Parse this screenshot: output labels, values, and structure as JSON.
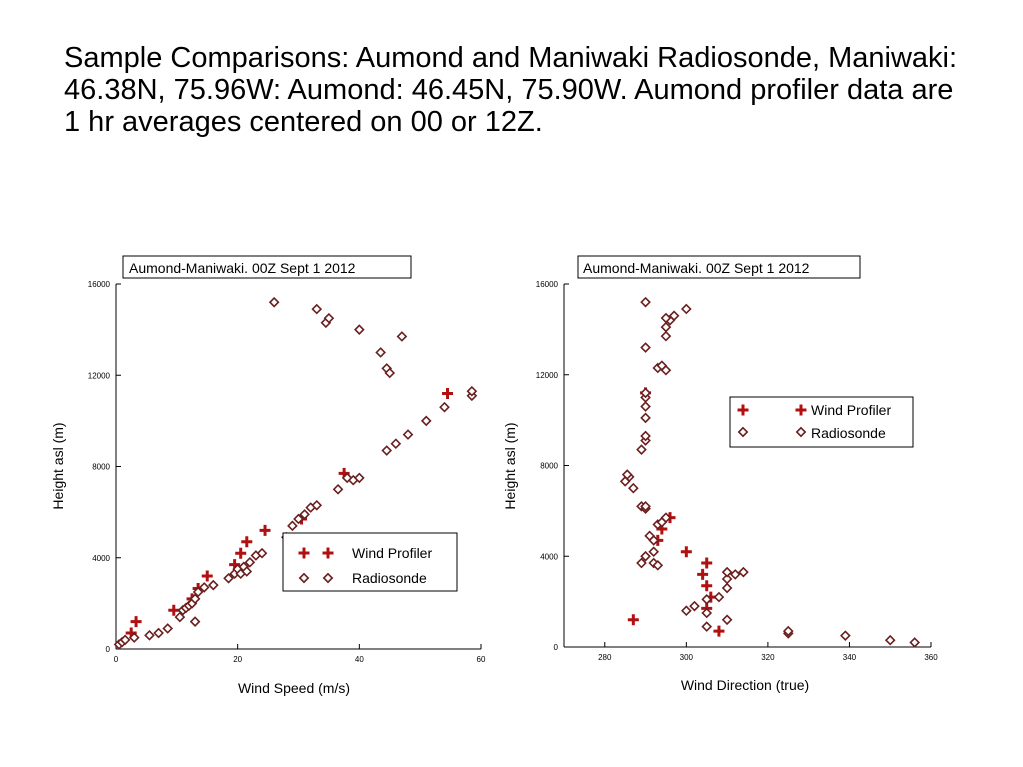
{
  "slide": {
    "title": "Sample Comparisons: Aumond  and Maniwaki Radiosonde,  Maniwaki: 46.38N, 75.96W: Aumond: 46.45N, 75.90W. Aumond profiler data are 1 hr averages centered on 00 or 12Z."
  },
  "colors": {
    "profiler": "#b01010",
    "radiosonde": "#6a1f1f",
    "axis": "#000000"
  },
  "chart_data": [
    {
      "type": "scatter",
      "title": "Aumond-Maniwaki.  00Z Sept 1 2012",
      "xlabel": "Wind Speed (m/s)",
      "ylabel": "Height asl (m)",
      "xlim": [
        0,
        60
      ],
      "ylim": [
        0,
        16000
      ],
      "xticks": [
        0,
        20,
        40,
        60
      ],
      "yticks": [
        0,
        4000,
        8000,
        12000,
        16000
      ],
      "legend_position": "bottom-right",
      "legend_items": [
        "Wind Profiler",
        "Radiosonde"
      ],
      "series": [
        {
          "name": "Wind Profiler",
          "marker": "cross",
          "points": [
            [
              2.5,
              700
            ],
            [
              3.3,
              1200
            ],
            [
              9.5,
              1700
            ],
            [
              12.5,
              2200
            ],
            [
              13.5,
              2650
            ],
            [
              15,
              3200
            ],
            [
              19.5,
              3700
            ],
            [
              20.5,
              4200
            ],
            [
              21.5,
              4700
            ],
            [
              24.5,
              5200
            ],
            [
              30.5,
              5700
            ],
            [
              37.5,
              7700
            ],
            [
              54.5,
              11200
            ]
          ]
        },
        {
          "name": "Radiosonde",
          "marker": "diamond",
          "points": [
            [
              0.5,
              200
            ],
            [
              1,
              300
            ],
            [
              1.5,
              400
            ],
            [
              3,
              500
            ],
            [
              5.5,
              600
            ],
            [
              7,
              700
            ],
            [
              8.5,
              900
            ],
            [
              10.5,
              1400
            ],
            [
              11,
              1700
            ],
            [
              11.5,
              1800
            ],
            [
              12,
              1900
            ],
            [
              12.5,
              2000
            ],
            [
              13,
              1200
            ],
            [
              13,
              2200
            ],
            [
              13.5,
              2500
            ],
            [
              14.5,
              2700
            ],
            [
              16,
              2800
            ],
            [
              18.5,
              3100
            ],
            [
              19.5,
              3300
            ],
            [
              20,
              3500
            ],
            [
              20.5,
              3300
            ],
            [
              21,
              3600
            ],
            [
              21.5,
              3400
            ],
            [
              22,
              3800
            ],
            [
              23,
              4100
            ],
            [
              24,
              4200
            ],
            [
              28,
              4900
            ],
            [
              29,
              5400
            ],
            [
              30,
              5700
            ],
            [
              31,
              5900
            ],
            [
              32,
              6200
            ],
            [
              33,
              6300
            ],
            [
              36.5,
              7000
            ],
            [
              38,
              7500
            ],
            [
              39,
              7400
            ],
            [
              40,
              7500
            ],
            [
              44.5,
              8700
            ],
            [
              46,
              9000
            ],
            [
              48,
              9400
            ],
            [
              51,
              10000
            ],
            [
              54,
              10600
            ],
            [
              58.5,
              11100
            ],
            [
              58.5,
              11300
            ],
            [
              26,
              15200
            ],
            [
              33,
              14900
            ],
            [
              34.5,
              14300
            ],
            [
              35,
              14500
            ],
            [
              40,
              14000
            ],
            [
              43.5,
              13000
            ],
            [
              44.5,
              12300
            ],
            [
              45,
              12100
            ],
            [
              47,
              13700
            ]
          ]
        }
      ]
    },
    {
      "type": "scatter",
      "title": "Aumond-Maniwaki.  00Z Sept 1 2012",
      "xlabel": "Wind Direction (true)",
      "ylabel": "Height asl (m)",
      "xlim": [
        270,
        360
      ],
      "ylim": [
        0,
        16000
      ],
      "xticks": [
        280,
        300,
        320,
        340,
        360
      ],
      "yticks": [
        0,
        4000,
        8000,
        12000,
        16000
      ],
      "legend_position": "top-right",
      "legend_items": [
        "Wind Profiler",
        "Radiosonde"
      ],
      "series": [
        {
          "name": "Wind Profiler",
          "marker": "cross",
          "points": [
            [
              287,
              1200
            ],
            [
              308,
              700
            ],
            [
              305,
              1700
            ],
            [
              306,
              2200
            ],
            [
              305,
              2700
            ],
            [
              304,
              3200
            ],
            [
              305,
              3700
            ],
            [
              300,
              4200
            ],
            [
              293,
              4700
            ],
            [
              294,
              5200
            ],
            [
              296,
              5700
            ],
            [
              290,
              11200
            ]
          ]
        },
        {
          "name": "Radiosonde",
          "marker": "diamond",
          "points": [
            [
              325,
              600
            ],
            [
              325,
              700
            ],
            [
              339,
              500
            ],
            [
              350,
              300
            ],
            [
              356,
              200
            ],
            [
              305,
              900
            ],
            [
              310,
              1200
            ],
            [
              300,
              1600
            ],
            [
              302,
              1800
            ],
            [
              305,
              1500
            ],
            [
              305,
              2100
            ],
            [
              308,
              2200
            ],
            [
              310,
              2600
            ],
            [
              310,
              3000
            ],
            [
              310,
              3300
            ],
            [
              312,
              3200
            ],
            [
              314,
              3300
            ],
            [
              289,
              3700
            ],
            [
              290,
              4000
            ],
            [
              292,
              3700
            ],
            [
              292,
              4200
            ],
            [
              293,
              3600
            ],
            [
              292,
              4700
            ],
            [
              291,
              4900
            ],
            [
              293,
              5400
            ],
            [
              294,
              5500
            ],
            [
              295,
              5700
            ],
            [
              289,
              6200
            ],
            [
              290,
              6100
            ],
            [
              290,
              6200
            ],
            [
              287,
              7000
            ],
            [
              286,
              7500
            ],
            [
              285,
              7300
            ],
            [
              285.5,
              7600
            ],
            [
              289,
              8700
            ],
            [
              290,
              9100
            ],
            [
              290,
              9300
            ],
            [
              290,
              10100
            ],
            [
              290,
              10600
            ],
            [
              290,
              11000
            ],
            [
              290,
              11200
            ],
            [
              293,
              12300
            ],
            [
              294,
              12400
            ],
            [
              295,
              12200
            ],
            [
              295,
              13700
            ],
            [
              295,
              14100
            ],
            [
              296,
              14400
            ],
            [
              295,
              14500
            ],
            [
              297,
              14600
            ],
            [
              300,
              14900
            ],
            [
              290,
              15200
            ],
            [
              290,
              13200
            ]
          ]
        }
      ]
    }
  ]
}
